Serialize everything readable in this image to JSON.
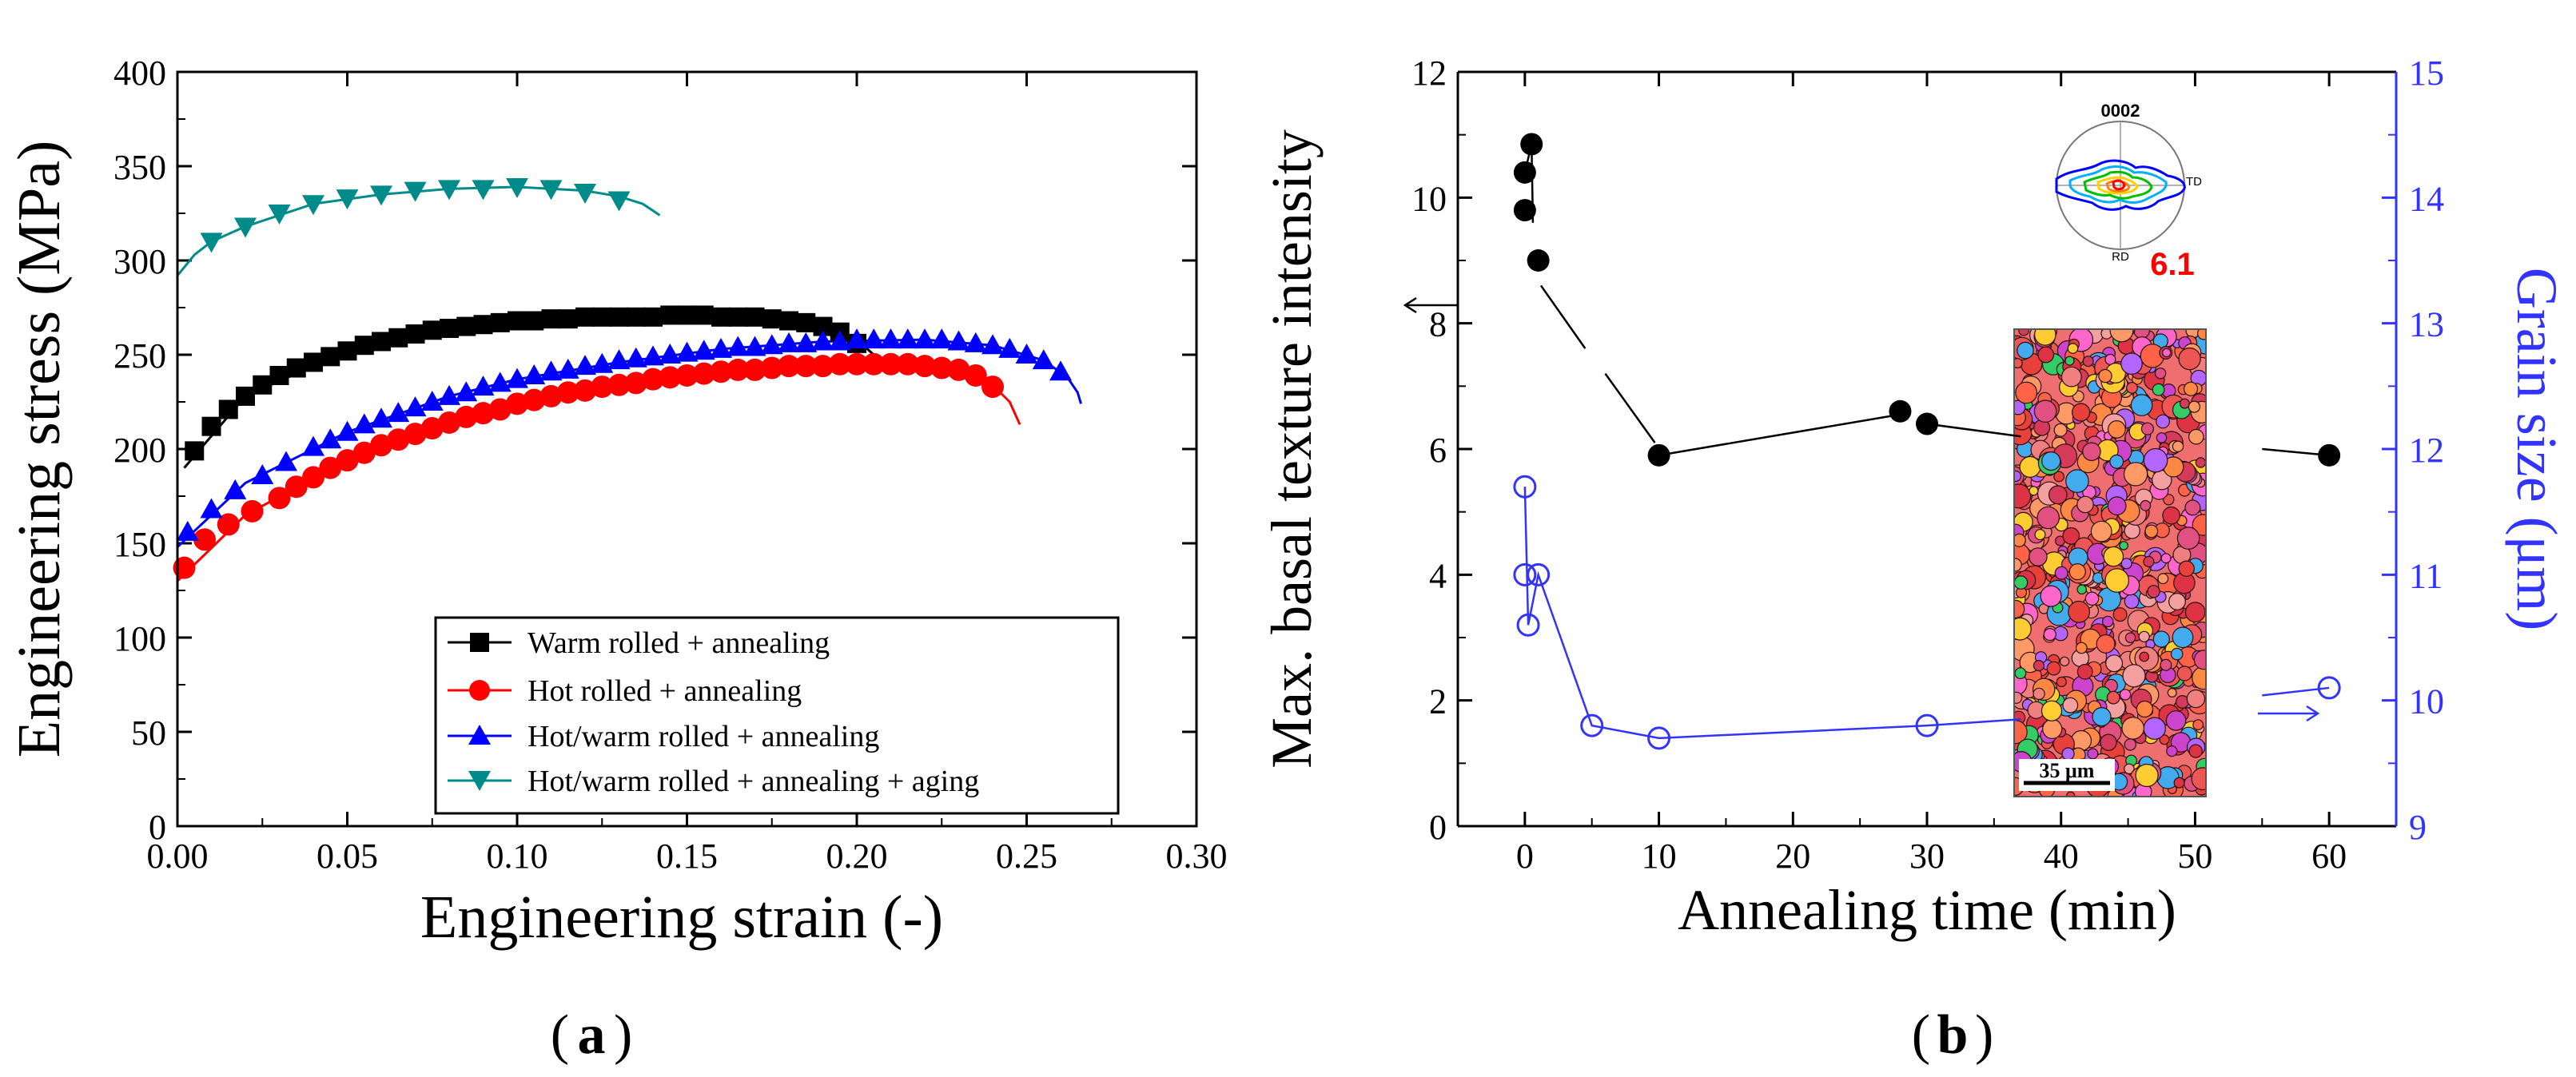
{
  "chart_data": [
    {
      "type": "scatter",
      "panel_label": "a",
      "xlabel": "Engineering strain (-)",
      "ylabel": "Engineering stress (MPa)",
      "xlim": [
        0,
        0.3
      ],
      "ylim": [
        0,
        400
      ],
      "xticks": [
        "0.00",
        "0.05",
        "0.10",
        "0.15",
        "0.20",
        "0.25",
        "0.30"
      ],
      "yticks": [
        "0",
        "50",
        "100",
        "150",
        "200",
        "250",
        "300",
        "350",
        "400"
      ],
      "legend_position": "bottom-right",
      "series": [
        {
          "name": "Warm rolled + annealing",
          "color": "#000000",
          "marker": "square",
          "x": [
            0.005,
            0.01,
            0.015,
            0.02,
            0.025,
            0.03,
            0.035,
            0.04,
            0.045,
            0.05,
            0.055,
            0.06,
            0.065,
            0.07,
            0.075,
            0.08,
            0.085,
            0.09,
            0.095,
            0.1,
            0.105,
            0.11,
            0.115,
            0.12,
            0.125,
            0.13,
            0.135,
            0.14,
            0.145,
            0.15,
            0.155,
            0.16,
            0.165,
            0.17,
            0.175,
            0.18,
            0.185,
            0.19,
            0.195,
            0.2
          ],
          "y": [
            199,
            212,
            221,
            228,
            234,
            239,
            243,
            246,
            249,
            252,
            255,
            257,
            259,
            261,
            263,
            264,
            265,
            266,
            267,
            268,
            268,
            269,
            269,
            270,
            270,
            270,
            270,
            270,
            271,
            271,
            271,
            270,
            270,
            270,
            269,
            268,
            267,
            265,
            262,
            256
          ],
          "curve_x": [
            0.002,
            0.02,
            0.05,
            0.08,
            0.1,
            0.12,
            0.14,
            0.16,
            0.18,
            0.19,
            0.2,
            0.205
          ],
          "curve_y": [
            190,
            228,
            252,
            264,
            268,
            270,
            270,
            270,
            268,
            265,
            258,
            250
          ]
        },
        {
          "name": "Hot rolled + annealing",
          "color": "#ff0000",
          "marker": "circle",
          "x": [
            0.002,
            0.008,
            0.015,
            0.022,
            0.03,
            0.035,
            0.04,
            0.045,
            0.05,
            0.055,
            0.06,
            0.065,
            0.07,
            0.075,
            0.08,
            0.085,
            0.09,
            0.095,
            0.1,
            0.105,
            0.11,
            0.115,
            0.12,
            0.125,
            0.13,
            0.135,
            0.14,
            0.145,
            0.15,
            0.155,
            0.16,
            0.165,
            0.17,
            0.175,
            0.18,
            0.185,
            0.19,
            0.195,
            0.2,
            0.205,
            0.21,
            0.215,
            0.22,
            0.225,
            0.23,
            0.235,
            0.24
          ],
          "y": [
            137,
            152,
            160,
            167,
            174,
            180,
            185,
            190,
            194,
            198,
            202,
            205,
            208,
            211,
            214,
            217,
            219,
            221,
            224,
            226,
            228,
            230,
            231,
            233,
            234,
            235,
            237,
            238,
            239,
            240,
            241,
            242,
            242,
            243,
            244,
            244,
            244,
            245,
            245,
            245,
            245,
            245,
            244,
            243,
            242,
            239,
            233
          ],
          "curve_x": [
            0.0,
            0.02,
            0.05,
            0.08,
            0.1,
            0.13,
            0.16,
            0.19,
            0.21,
            0.23,
            0.24,
            0.245,
            0.248
          ],
          "curve_y": [
            130,
            165,
            194,
            214,
            224,
            234,
            241,
            245,
            245,
            242,
            234,
            225,
            213
          ]
        },
        {
          "name": "Hot/warm rolled + annealing",
          "color": "#0000ff",
          "marker": "triangle-up",
          "x": [
            0.003,
            0.01,
            0.017,
            0.025,
            0.032,
            0.04,
            0.045,
            0.05,
            0.055,
            0.06,
            0.065,
            0.07,
            0.075,
            0.08,
            0.085,
            0.09,
            0.095,
            0.1,
            0.105,
            0.11,
            0.115,
            0.12,
            0.125,
            0.13,
            0.135,
            0.14,
            0.145,
            0.15,
            0.155,
            0.16,
            0.165,
            0.17,
            0.175,
            0.18,
            0.185,
            0.19,
            0.195,
            0.2,
            0.205,
            0.21,
            0.215,
            0.22,
            0.225,
            0.23,
            0.235,
            0.24,
            0.245,
            0.25,
            0.255,
            0.26
          ],
          "y": [
            156,
            168,
            178,
            186,
            193,
            201,
            205,
            209,
            213,
            216,
            219,
            222,
            225,
            228,
            230,
            233,
            235,
            237,
            239,
            241,
            242,
            244,
            245,
            247,
            248,
            249,
            250,
            251,
            252,
            253,
            254,
            254,
            255,
            256,
            256,
            257,
            257,
            258,
            258,
            258,
            258,
            258,
            258,
            257,
            256,
            255,
            253,
            250,
            247,
            241
          ],
          "curve_x": [
            0.0,
            0.02,
            0.05,
            0.08,
            0.1,
            0.13,
            0.16,
            0.19,
            0.22,
            0.24,
            0.255,
            0.262,
            0.265,
            0.266
          ],
          "curve_y": [
            148,
            182,
            209,
            228,
            237,
            246,
            253,
            257,
            258,
            255,
            247,
            238,
            230,
            224
          ]
        },
        {
          "name": "Hot/warm rolled + annealing + aging",
          "color": "#008b8b",
          "marker": "triangle-down",
          "x": [
            0.01,
            0.02,
            0.03,
            0.04,
            0.05,
            0.06,
            0.07,
            0.08,
            0.09,
            0.1,
            0.11,
            0.12,
            0.13
          ],
          "y": [
            310,
            318,
            325,
            330,
            333,
            335,
            337,
            338,
            338,
            339,
            338,
            336,
            332
          ],
          "curve_x": [
            0.0,
            0.005,
            0.01,
            0.02,
            0.04,
            0.06,
            0.08,
            0.1,
            0.12,
            0.13,
            0.137,
            0.142
          ],
          "curve_y": [
            292,
            303,
            310,
            318,
            330,
            335,
            338,
            339,
            337,
            334,
            330,
            324
          ]
        }
      ]
    },
    {
      "type": "scatter",
      "panel_label": "b",
      "xlabel": "Annealing time (min)",
      "ylabel_left": "Max. basal texture intensity",
      "ylabel_right": "Grain size (μm)",
      "xlim": [
        -5,
        65
      ],
      "ylim_left": [
        0,
        12
      ],
      "ylim_right": [
        9,
        15
      ],
      "xticks": [
        "0",
        "10",
        "20",
        "30",
        "40",
        "50",
        "60"
      ],
      "yticks_left": [
        "0",
        "2",
        "4",
        "6",
        "8",
        "10",
        "12"
      ],
      "yticks_right": [
        "9",
        "10",
        "11",
        "12",
        "13",
        "14",
        "15"
      ],
      "left_axis_color": "#000000",
      "right_axis_color": "#3333ff",
      "series": [
        {
          "name": "Max. basal texture intensity",
          "axis": "left",
          "color": "#000000",
          "marker": "filled-circle",
          "x": [
            0,
            0,
            0.5,
            1,
            10,
            28,
            30,
            60
          ],
          "y": [
            10.4,
            9.8,
            10.85,
            9.0,
            5.9,
            6.6,
            6.4,
            5.9
          ]
        },
        {
          "name": "Grain size",
          "axis": "right",
          "color": "#3333ff",
          "marker": "open-circle",
          "x": [
            0,
            0,
            0.25,
            1,
            5,
            10,
            30,
            60
          ],
          "y": [
            11.7,
            11.0,
            10.6,
            11.0,
            9.8,
            9.7,
            9.8,
            10.1
          ]
        }
      ],
      "inset_pole_figure": {
        "title": "0002",
        "label_td": "TD",
        "label_rd": "RD",
        "max_value": "6.1",
        "max_value_color": "#ff0000"
      },
      "inset_ebsd_map": {
        "scale_bar": "35 μm"
      }
    }
  ],
  "labels": {
    "panel_a": "a",
    "panel_b": "b"
  }
}
